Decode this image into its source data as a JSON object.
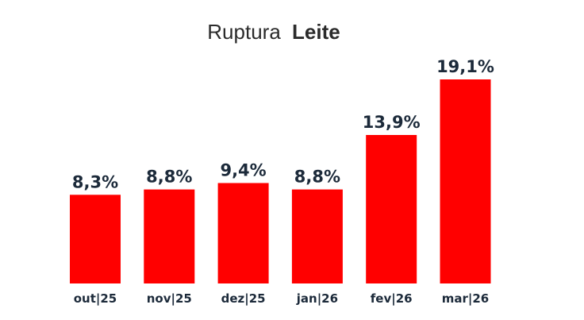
{
  "chart_data": {
    "type": "bar",
    "title_prefix": "Ruptura",
    "title_emphasis": "Leite",
    "categories": [
      "out|25",
      "nov|25",
      "dez|25",
      "jan|26",
      "fev|26",
      "mar|26"
    ],
    "values": [
      8.3,
      8.8,
      9.4,
      8.8,
      13.9,
      19.1
    ],
    "value_labels": [
      "8,3%",
      "8,8%",
      "9,4%",
      "8,8%",
      "13,9%",
      "19,1%"
    ],
    "ylim": [
      0,
      19.1
    ],
    "grid": false,
    "legend": "none",
    "colors": {
      "bar": "#ff0000",
      "label": "#1c2a3a",
      "title": "#2b2b2b"
    }
  }
}
